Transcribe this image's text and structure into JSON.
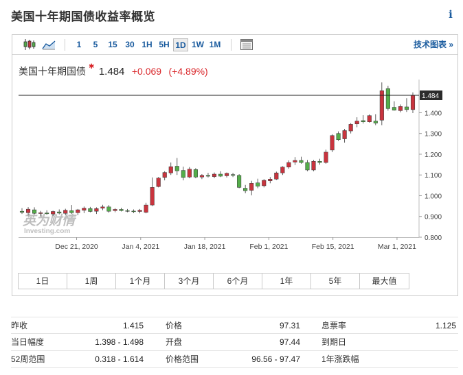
{
  "page": {
    "title": "美国十年期国债收益率概览",
    "info_glyph": "i"
  },
  "toolbar": {
    "timeframes": [
      "1",
      "5",
      "15",
      "30",
      "1H",
      "5H",
      "1D",
      "1W",
      "1M"
    ],
    "active_timeframe": "1D",
    "advanced_chart_label": "技术图表 »"
  },
  "quote": {
    "name": "美国十年期国债",
    "star": "✱",
    "price": "1.484",
    "change": "+0.069",
    "change_pct": "(+4.89%)"
  },
  "colors": {
    "up": "#c9343e",
    "down": "#54ad4a",
    "link": "#1a5b9e"
  },
  "watermark": {
    "logo_text": "英为财情",
    "sub_text": "Investing.com"
  },
  "chart_data": {
    "type": "candlestick",
    "y_axis": {
      "min": 0.8,
      "max": 1.56,
      "ticks": [
        "0.800",
        "0.900",
        "1.000",
        "1.100",
        "1.200",
        "1.300",
        "1.400"
      ]
    },
    "x_tick_labels": [
      "Dec 21, 2020",
      "Jan 4, 2021",
      "Jan 18, 2021",
      "Feb 1, 2021",
      "Feb 15, 2021",
      "Mar 1, 2021"
    ],
    "last_price_label": "1.484",
    "candles": [
      {
        "o": 0.925,
        "h": 0.94,
        "l": 0.912,
        "c": 0.92
      },
      {
        "o": 0.918,
        "h": 0.945,
        "l": 0.905,
        "c": 0.935
      },
      {
        "o": 0.932,
        "h": 0.944,
        "l": 0.912,
        "c": 0.915
      },
      {
        "o": 0.914,
        "h": 0.927,
        "l": 0.9,
        "c": 0.918
      },
      {
        "o": 0.917,
        "h": 0.93,
        "l": 0.908,
        "c": 0.913
      },
      {
        "o": 0.912,
        "h": 0.928,
        "l": 0.902,
        "c": 0.924
      },
      {
        "o": 0.922,
        "h": 0.934,
        "l": 0.91,
        "c": 0.916
      },
      {
        "o": 0.915,
        "h": 0.937,
        "l": 0.905,
        "c": 0.93
      },
      {
        "o": 0.928,
        "h": 0.955,
        "l": 0.912,
        "c": 0.918
      },
      {
        "o": 0.918,
        "h": 0.936,
        "l": 0.906,
        "c": 0.932
      },
      {
        "o": 0.93,
        "h": 0.948,
        "l": 0.916,
        "c": 0.94
      },
      {
        "o": 0.938,
        "h": 0.946,
        "l": 0.92,
        "c": 0.924
      },
      {
        "o": 0.925,
        "h": 0.944,
        "l": 0.912,
        "c": 0.938
      },
      {
        "o": 0.94,
        "h": 0.956,
        "l": 0.93,
        "c": 0.946
      },
      {
        "o": 0.946,
        "h": 0.955,
        "l": 0.918,
        "c": 0.925
      },
      {
        "o": 0.928,
        "h": 0.94,
        "l": 0.92,
        "c": 0.934
      },
      {
        "o": 0.934,
        "h": 0.942,
        "l": 0.924,
        "c": 0.928
      },
      {
        "o": 0.928,
        "h": 0.936,
        "l": 0.92,
        "c": 0.926
      },
      {
        "o": 0.926,
        "h": 0.934,
        "l": 0.916,
        "c": 0.924
      },
      {
        "o": 0.924,
        "h": 0.936,
        "l": 0.915,
        "c": 0.93
      },
      {
        "o": 0.92,
        "h": 0.966,
        "l": 0.915,
        "c": 0.955
      },
      {
        "o": 0.955,
        "h": 1.088,
        "l": 0.95,
        "c": 1.04
      },
      {
        "o": 1.044,
        "h": 1.09,
        "l": 1.04,
        "c": 1.085
      },
      {
        "o": 1.088,
        "h": 1.118,
        "l": 1.074,
        "c": 1.112
      },
      {
        "o": 1.11,
        "h": 1.16,
        "l": 1.1,
        "c": 1.14
      },
      {
        "o": 1.142,
        "h": 1.182,
        "l": 1.1,
        "c": 1.12
      },
      {
        "o": 1.122,
        "h": 1.14,
        "l": 1.074,
        "c": 1.088
      },
      {
        "o": 1.09,
        "h": 1.138,
        "l": 1.084,
        "c": 1.128
      },
      {
        "o": 1.126,
        "h": 1.133,
        "l": 1.084,
        "c": 1.09
      },
      {
        "o": 1.09,
        "h": 1.104,
        "l": 1.08,
        "c": 1.098
      },
      {
        "o": 1.098,
        "h": 1.11,
        "l": 1.088,
        "c": 1.094
      },
      {
        "o": 1.092,
        "h": 1.112,
        "l": 1.084,
        "c": 1.104
      },
      {
        "o": 1.104,
        "h": 1.118,
        "l": 1.09,
        "c": 1.094
      },
      {
        "o": 1.096,
        "h": 1.112,
        "l": 1.088,
        "c": 1.108
      },
      {
        "o": 1.102,
        "h": 1.11,
        "l": 1.09,
        "c": 1.098
      },
      {
        "o": 1.098,
        "h": 1.104,
        "l": 1.036,
        "c": 1.04
      },
      {
        "o": 1.036,
        "h": 1.052,
        "l": 1.012,
        "c": 1.024
      },
      {
        "o": 1.026,
        "h": 1.072,
        "l": 1.002,
        "c": 1.06
      },
      {
        "o": 1.062,
        "h": 1.082,
        "l": 1.036,
        "c": 1.046
      },
      {
        "o": 1.048,
        "h": 1.08,
        "l": 1.04,
        "c": 1.074
      },
      {
        "o": 1.072,
        "h": 1.09,
        "l": 1.06,
        "c": 1.08
      },
      {
        "o": 1.08,
        "h": 1.116,
        "l": 1.076,
        "c": 1.11
      },
      {
        "o": 1.11,
        "h": 1.142,
        "l": 1.1,
        "c": 1.138
      },
      {
        "o": 1.138,
        "h": 1.17,
        "l": 1.13,
        "c": 1.16
      },
      {
        "o": 1.162,
        "h": 1.186,
        "l": 1.148,
        "c": 1.17
      },
      {
        "o": 1.17,
        "h": 1.188,
        "l": 1.154,
        "c": 1.16
      },
      {
        "o": 1.16,
        "h": 1.172,
        "l": 1.118,
        "c": 1.124
      },
      {
        "o": 1.124,
        "h": 1.172,
        "l": 1.118,
        "c": 1.166
      },
      {
        "o": 1.166,
        "h": 1.178,
        "l": 1.15,
        "c": 1.16
      },
      {
        "o": 1.16,
        "h": 1.222,
        "l": 1.154,
        "c": 1.21
      },
      {
        "o": 1.22,
        "h": 1.296,
        "l": 1.21,
        "c": 1.29
      },
      {
        "o": 1.3,
        "h": 1.31,
        "l": 1.264,
        "c": 1.27
      },
      {
        "o": 1.274,
        "h": 1.322,
        "l": 1.256,
        "c": 1.314
      },
      {
        "o": 1.312,
        "h": 1.35,
        "l": 1.3,
        "c": 1.344
      },
      {
        "o": 1.346,
        "h": 1.378,
        "l": 1.33,
        "c": 1.36
      },
      {
        "o": 1.362,
        "h": 1.388,
        "l": 1.348,
        "c": 1.356
      },
      {
        "o": 1.356,
        "h": 1.392,
        "l": 1.352,
        "c": 1.386
      },
      {
        "o": 1.36,
        "h": 1.393,
        "l": 1.34,
        "c": 1.35
      },
      {
        "o": 1.364,
        "h": 1.546,
        "l": 1.34,
        "c": 1.506
      },
      {
        "o": 1.516,
        "h": 1.53,
        "l": 1.41,
        "c": 1.42
      },
      {
        "o": 1.426,
        "h": 1.455,
        "l": 1.41,
        "c": 1.412
      },
      {
        "o": 1.41,
        "h": 1.44,
        "l": 1.402,
        "c": 1.43
      },
      {
        "o": 1.428,
        "h": 1.47,
        "l": 1.404,
        "c": 1.415
      },
      {
        "o": 1.415,
        "h": 1.498,
        "l": 1.398,
        "c": 1.484
      }
    ]
  },
  "ranges": [
    "1日",
    "1周",
    "1个月",
    "3个月",
    "6个月",
    "1年",
    "5年",
    "最大值"
  ],
  "stats": [
    [
      {
        "label": "昨收",
        "value": "1.415"
      },
      {
        "label": "价格",
        "value": "97.31"
      },
      {
        "label": "息票率",
        "value": "1.125"
      }
    ],
    [
      {
        "label": "当日幅度",
        "value": "1.398 - 1.498"
      },
      {
        "label": "开盘",
        "value": "97.44"
      },
      {
        "label": "到期日",
        "value": ""
      }
    ],
    [
      {
        "label": "52周范围",
        "value": "0.318 - 1.614"
      },
      {
        "label": "价格范围",
        "value": "96.56 - 97.47"
      },
      {
        "label": "1年涨跌幅",
        "value": ""
      }
    ]
  ]
}
